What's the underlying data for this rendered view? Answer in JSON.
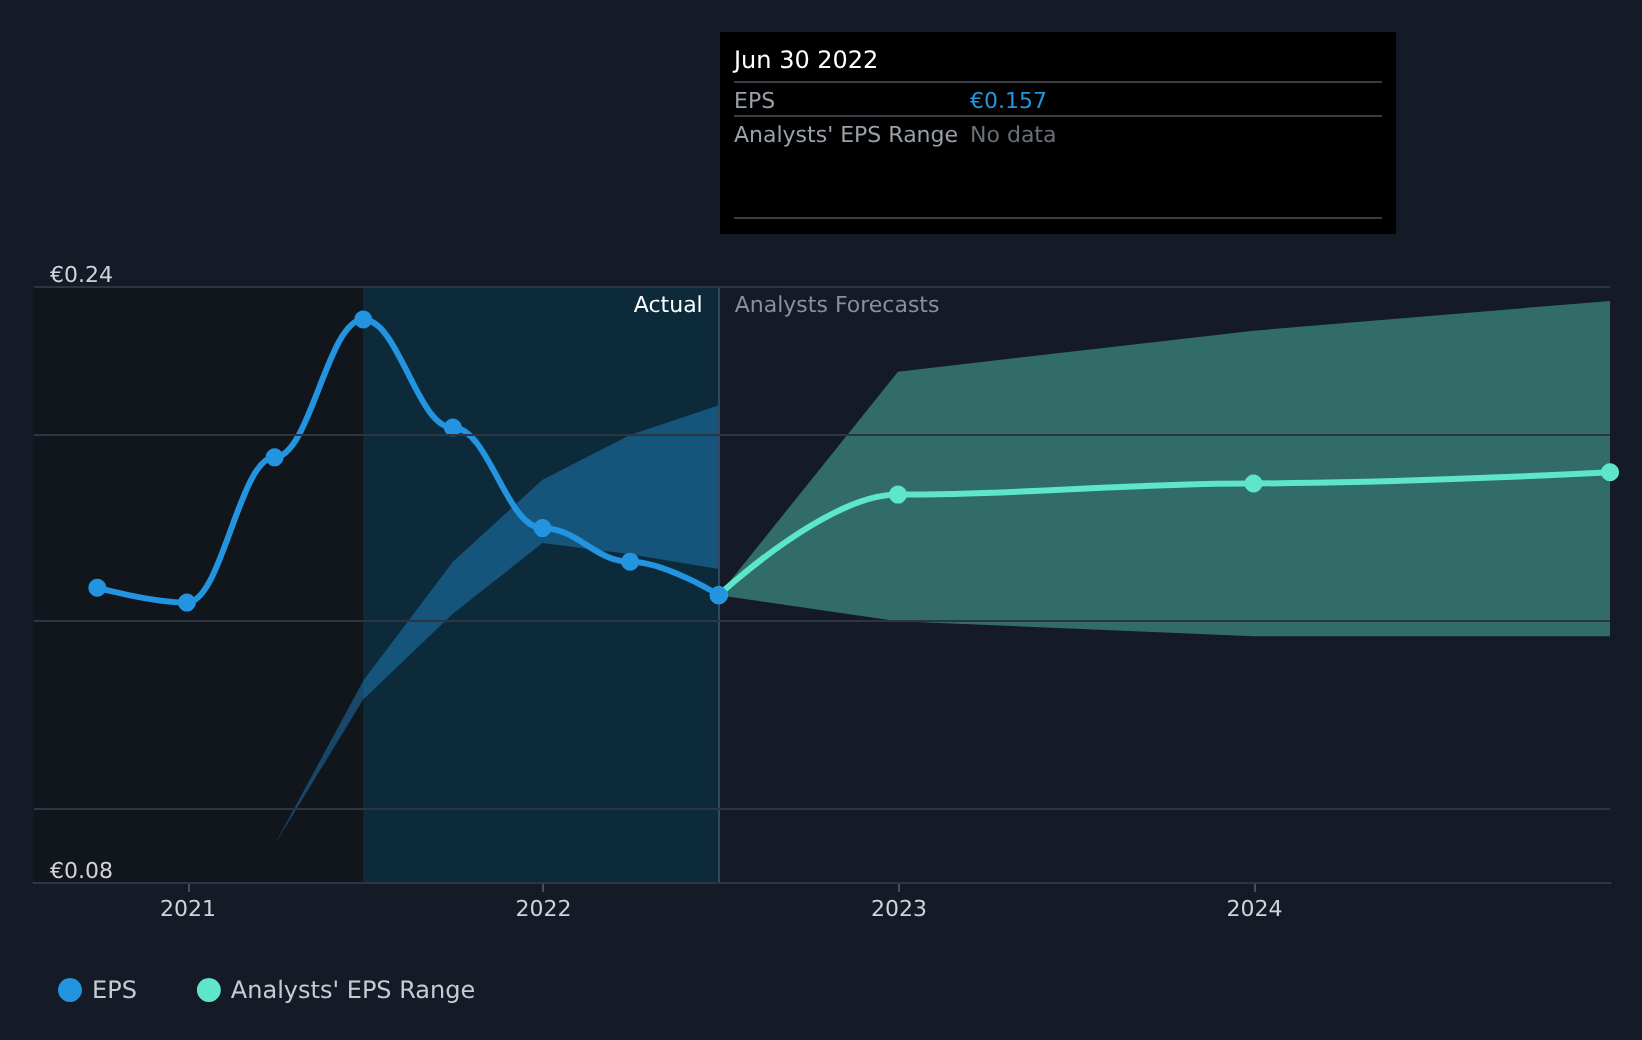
{
  "chart_data": {
    "type": "line",
    "x": [
      "2020-09-30",
      "2020-12-31",
      "2021-03-31",
      "2021-06-30",
      "2021-09-30",
      "2021-12-31",
      "2022-03-31",
      "2022-06-30"
    ],
    "series": [
      {
        "name": "EPS",
        "color": "#2394df",
        "values": [
          0.159,
          0.155,
          0.194,
          0.231,
          0.202,
          0.175,
          0.166,
          0.157
        ],
        "lower": [
          null,
          null,
          0.09,
          0.129,
          0.152,
          0.171,
          0.168,
          0.164
        ],
        "upper": [
          null,
          null,
          0.09,
          0.134,
          0.166,
          0.188,
          0.2,
          0.208
        ]
      },
      {
        "name": "Analysts' EPS Range",
        "color": "#5ee6cc",
        "x": [
          "2022-06-30",
          "2022-12-31",
          "2023-12-31",
          "2024-12-31"
        ],
        "values": [
          0.157,
          0.184,
          0.187,
          0.19
        ],
        "lower": [
          0.157,
          0.15,
          0.146,
          0.146
        ],
        "upper": [
          0.157,
          0.217,
          0.228,
          0.236
        ]
      }
    ],
    "xlim": [
      "2020-07-27",
      "2024-12-31"
    ],
    "xticks": [
      {
        "value": "2021",
        "label": "2021"
      },
      {
        "value": "2022",
        "label": "2022"
      },
      {
        "value": "2023",
        "label": "2023"
      },
      {
        "value": "2024",
        "label": "2024"
      }
    ],
    "ylim": [
      0.08,
      0.24
    ],
    "yticks": [
      {
        "value": 0.08,
        "label": "€0.08"
      },
      {
        "value": 0.1,
        "label": null
      },
      {
        "value": 0.15,
        "label": null
      },
      {
        "value": 0.2,
        "label": null
      },
      {
        "value": 0.24,
        "label": "€0.24"
      }
    ],
    "grid": "y",
    "legend": "bottom left",
    "marker": "circle",
    "line_style": "solid",
    "bands": [
      {
        "axis": "x",
        "from": "2020-07-27",
        "to": "2021-06-30",
        "color": "#11151c"
      },
      {
        "axis": "x",
        "from": "2021-06-30",
        "to": "2022-06-30",
        "color": "#0c2a3a"
      }
    ],
    "ref_lines": [
      {
        "axis": "x",
        "value": "2022-06-30",
        "color": "#2e4a5c"
      }
    ],
    "annotations": [
      {
        "text": "Actual",
        "x": "2022-06-30",
        "y": 0.235
      },
      {
        "text": "Analysts Forecasts",
        "x": "2022-06-30",
        "y": 0.235
      },
      "Jun 30 2022",
      "EPS",
      "€0.157",
      "Analysts' EPS Range",
      "No data"
    ]
  }
}
